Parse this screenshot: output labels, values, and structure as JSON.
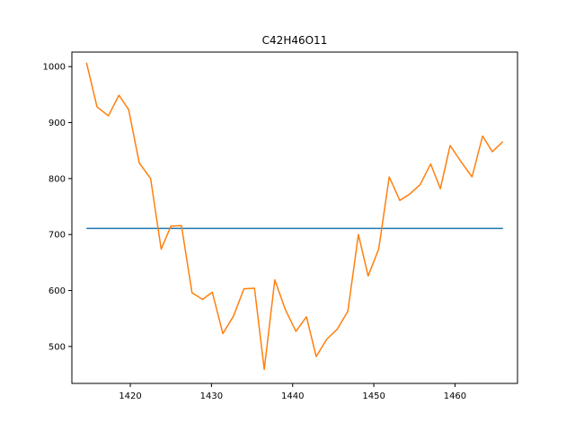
{
  "chart_data": {
    "type": "line",
    "title": "C42H46O11",
    "xlabel": "",
    "ylabel": "",
    "xlim": [
      1412.8,
      1467.7
    ],
    "ylim": [
      434,
      1026
    ],
    "x_ticks": [
      1420,
      1430,
      1440,
      1450,
      1460
    ],
    "y_ticks": [
      500,
      600,
      700,
      800,
      900,
      1000
    ],
    "grid": false,
    "legend": "none",
    "series": [
      {
        "color": "#1f77b4",
        "x": [
          1414.6,
          1465.9
        ],
        "y": [
          711,
          711
        ]
      },
      {
        "color": "#ff7f0e",
        "x": [
          1414.6,
          1415.9,
          1417.3,
          1418.6,
          1419.8,
          1421.1,
          1422.5,
          1423.8,
          1425.0,
          1426.3,
          1427.6,
          1428.9,
          1430.1,
          1431.4,
          1432.7,
          1434.0,
          1435.3,
          1436.5,
          1437.8,
          1439.1,
          1440.4,
          1441.7,
          1442.9,
          1444.2,
          1445.5,
          1446.8,
          1448.1,
          1449.3,
          1450.6,
          1451.9,
          1453.2,
          1454.4,
          1455.7,
          1457.0,
          1458.2,
          1459.4,
          1460.8,
          1462.1,
          1463.4,
          1464.6,
          1465.9
        ],
        "y": [
          1007,
          928,
          912,
          949,
          923,
          828,
          800,
          674,
          715,
          716,
          596,
          584,
          597,
          523,
          554,
          603,
          604,
          459,
          619,
          566,
          527,
          553,
          482,
          513,
          531,
          563,
          700,
          626,
          674,
          803,
          761,
          772,
          789,
          826,
          782,
          859,
          829,
          803,
          876,
          848,
          866
        ]
      }
    ]
  }
}
